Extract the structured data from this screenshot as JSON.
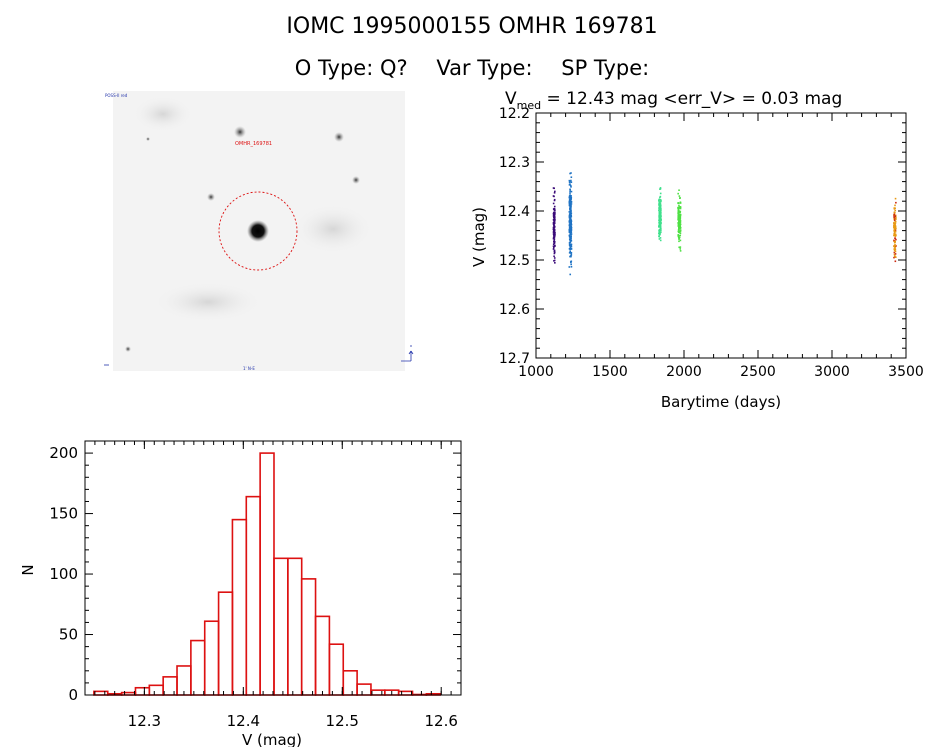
{
  "header": {
    "ids": "IOMC 1995000155    OMHR 169781",
    "o_type": "O Type: Q?",
    "var_type": "Var Type:",
    "sp_type": "SP Type:"
  },
  "image": {
    "label_top_left": "POSS-II red",
    "label_target": "OMHR_169781",
    "label_bottom": "1' N-E"
  },
  "colors": {
    "hist_bar": "#dd1111",
    "circle": "#dd1111",
    "season_colors": [
      "#3a0a78",
      "#1f73c4",
      "#3fe08c",
      "#4fe044",
      "#e89a14"
    ]
  },
  "chart_data": [
    {
      "type": "scatter",
      "title": "V_med = 12.43 mag <err_V> = 0.03 mag",
      "title_main": "V",
      "title_sub": "med",
      "title_rest": " = 12.43 mag <err_V> = 0.03 mag",
      "xlabel": "Barytime (days)",
      "ylabel": "V (mag)",
      "xlim": [
        1000,
        3500
      ],
      "ylim": [
        12.7,
        12.2
      ],
      "xticks": [
        "1000",
        "1500",
        "2000",
        "2500",
        "3000",
        "3500"
      ],
      "yticks": [
        "12.2",
        "12.3",
        "12.4",
        "12.5",
        "12.6",
        "12.7"
      ],
      "series": [
        {
          "x_range": [
            1118,
            1128
          ],
          "y_range": [
            12.3,
            12.55
          ],
          "y_center": 12.43,
          "count": 120
        },
        {
          "x_range": [
            1225,
            1240
          ],
          "y_range": [
            12.25,
            12.6
          ],
          "y_center": 12.42,
          "count": 220
        },
        {
          "x_range": [
            1830,
            1845
          ],
          "y_range": [
            12.3,
            12.5
          ],
          "y_center": 12.41,
          "count": 150
        },
        {
          "x_range": [
            1960,
            1978
          ],
          "y_range": [
            12.32,
            12.53
          ],
          "y_center": 12.42,
          "count": 150
        },
        {
          "x_range": [
            3418,
            3432
          ],
          "y_range": [
            12.33,
            12.56
          ],
          "y_center": 12.44,
          "count": 110
        }
      ]
    },
    {
      "type": "bar",
      "title": "",
      "xlabel": "V (mag)",
      "ylabel": "N",
      "xlim": [
        12.24,
        12.62
      ],
      "ylim": [
        0,
        210
      ],
      "xticks": [
        "12.3",
        "12.4",
        "12.5",
        "12.6"
      ],
      "yticks": [
        "0",
        "50",
        "100",
        "150",
        "200"
      ],
      "bin_width": 0.014,
      "bin_starts": [
        12.249,
        12.263,
        12.277,
        12.291,
        12.305,
        12.319,
        12.333,
        12.347,
        12.361,
        12.375,
        12.389,
        12.403,
        12.417,
        12.431,
        12.445,
        12.459,
        12.473,
        12.487,
        12.501,
        12.515,
        12.529,
        12.543,
        12.557,
        12.571,
        12.585
      ],
      "values": [
        3,
        1,
        2,
        6,
        8,
        15,
        24,
        45,
        61,
        85,
        145,
        164,
        200,
        113,
        113,
        96,
        65,
        42,
        20,
        9,
        4,
        4,
        3,
        0,
        1
      ]
    }
  ]
}
